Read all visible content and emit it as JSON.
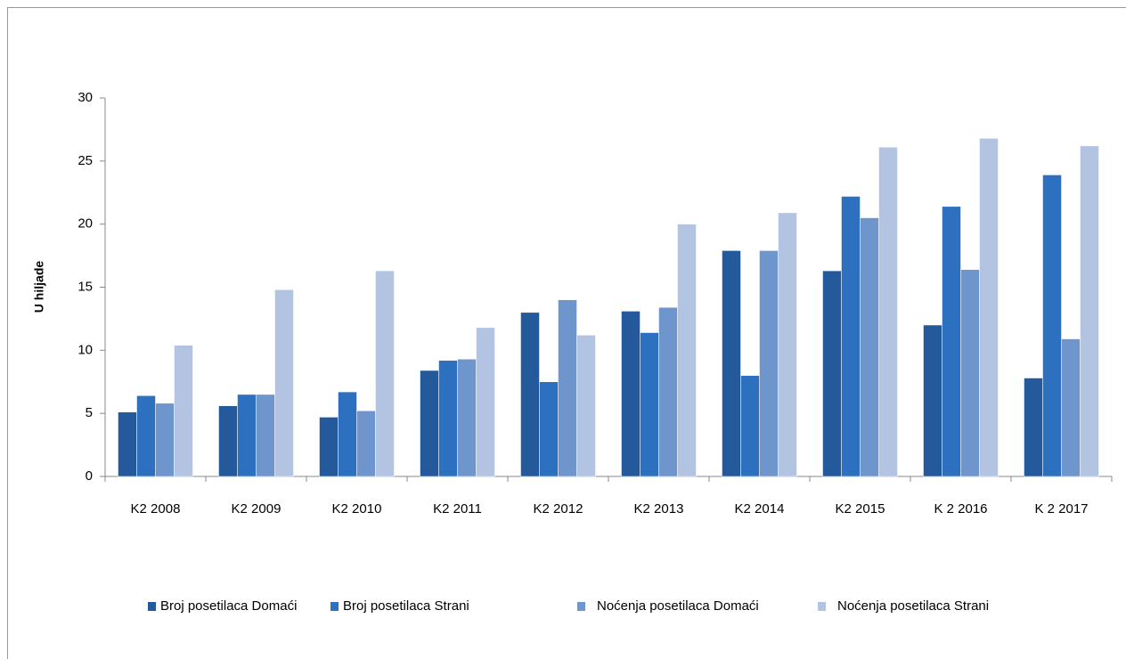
{
  "chart_data": {
    "type": "bar",
    "y_label": "U hiljade",
    "categories": [
      "K2 2008",
      "K2 2009",
      "K2 2010",
      "K2 2011",
      "K2 2012",
      "K2 2013",
      "K2 2014",
      "K2 2015",
      "K 2 2016",
      "K 2 2017"
    ],
    "series": [
      {
        "name": "Broj posetilaca Domaći",
        "color": "#245a9c",
        "values": [
          5.1,
          5.6,
          4.7,
          8.4,
          13.0,
          13.1,
          17.9,
          16.3,
          12.0,
          7.8
        ]
      },
      {
        "name": "Broj posetilaca Strani",
        "color": "#2d70c0",
        "values": [
          6.4,
          6.5,
          6.7,
          9.2,
          7.5,
          11.4,
          8.0,
          22.2,
          21.4,
          23.9
        ]
      },
      {
        "name": "Noćenja posetilaca Domaći",
        "color": "#6f95cd",
        "values": [
          5.8,
          6.5,
          5.2,
          9.3,
          14.0,
          13.4,
          17.9,
          20.5,
          16.4,
          10.9
        ]
      },
      {
        "name": "Noćenja posetilaca Strani",
        "color": "#b3c3e2",
        "values": [
          10.4,
          14.8,
          16.3,
          11.8,
          11.2,
          20.0,
          20.9,
          26.1,
          26.8,
          26.2
        ]
      }
    ],
    "ylim": [
      0,
      30
    ],
    "yticks": [
      0,
      5,
      10,
      15,
      20,
      25,
      30
    ],
    "legend": "bottom"
  }
}
